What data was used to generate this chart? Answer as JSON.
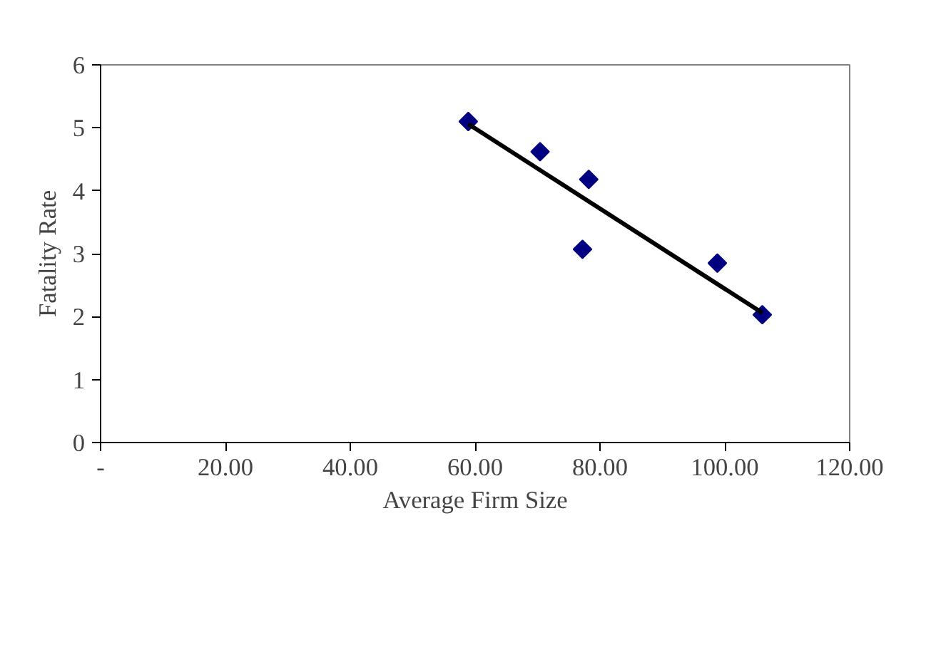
{
  "chart_data": {
    "type": "scatter",
    "xlabel": "Average Firm Size",
    "ylabel": "Fatality Rate",
    "series": [
      {
        "color": "#000080",
        "marker": "diamond",
        "x": [
          58.9,
          70.4,
          78.2,
          77.2,
          98.8,
          106.0
        ],
        "values": [
          5.1,
          4.62,
          4.18,
          3.07,
          2.85,
          2.03
        ]
      },
      {
        "type": "line",
        "color": "#000000",
        "marker": "none",
        "x": [
          58.9,
          106.0
        ],
        "values": [
          5.06,
          2.06
        ]
      }
    ],
    "xlim": [
      0,
      120
    ],
    "xticks": [
      {
        "value": 0,
        "label": "-"
      },
      {
        "value": 20,
        "label": "20.00"
      },
      {
        "value": 40,
        "label": "40.00"
      },
      {
        "value": 60,
        "label": "60.00"
      },
      {
        "value": 80,
        "label": "80.00"
      },
      {
        "value": 100,
        "label": "100.00"
      },
      {
        "value": 120,
        "label": "120.00"
      }
    ],
    "ylim": [
      0,
      6
    ],
    "yticks": [
      0,
      1,
      2,
      3,
      4,
      5,
      6
    ],
    "grid": false
  }
}
